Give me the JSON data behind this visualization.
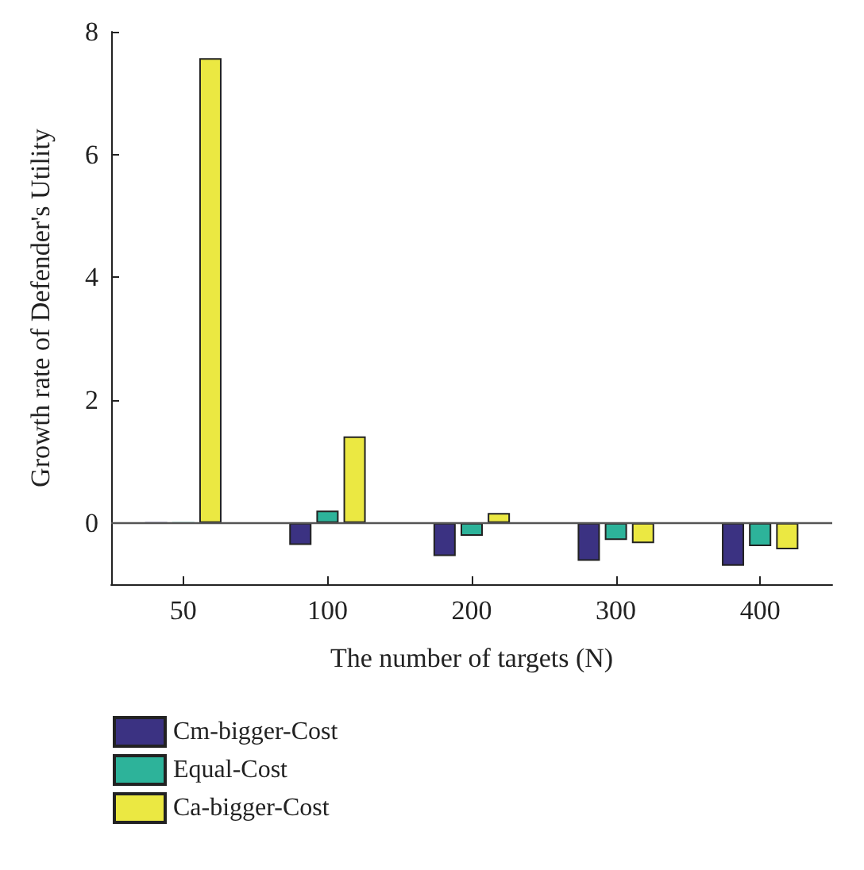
{
  "chart_data": {
    "type": "bar",
    "xlabel": "The number of targets (N)",
    "ylabel": "Growth rate of Defender's Utility",
    "categories": [
      "50",
      "100",
      "200",
      "300",
      "400"
    ],
    "series": [
      {
        "name": "Cm-bigger-Cost",
        "color": "#3b3282",
        "values": [
          0,
          -0.36,
          -0.54,
          -0.62,
          -0.7
        ]
      },
      {
        "name": "Equal-Cost",
        "color": "#2db39a",
        "values": [
          0,
          0.2,
          -0.21,
          -0.28,
          -0.38
        ]
      },
      {
        "name": "Ca-bigger-Cost",
        "color": "#ebe842",
        "values": [
          7.57,
          1.41,
          0.16,
          -0.33,
          -0.43
        ]
      }
    ],
    "ylim": [
      -1,
      8
    ],
    "yticks": [
      0,
      2,
      4,
      6,
      8
    ],
    "ref_lines": [
      {
        "axis": "y",
        "value": 0,
        "color": "#555555"
      }
    ],
    "grid": false,
    "legend": "bottom left"
  }
}
